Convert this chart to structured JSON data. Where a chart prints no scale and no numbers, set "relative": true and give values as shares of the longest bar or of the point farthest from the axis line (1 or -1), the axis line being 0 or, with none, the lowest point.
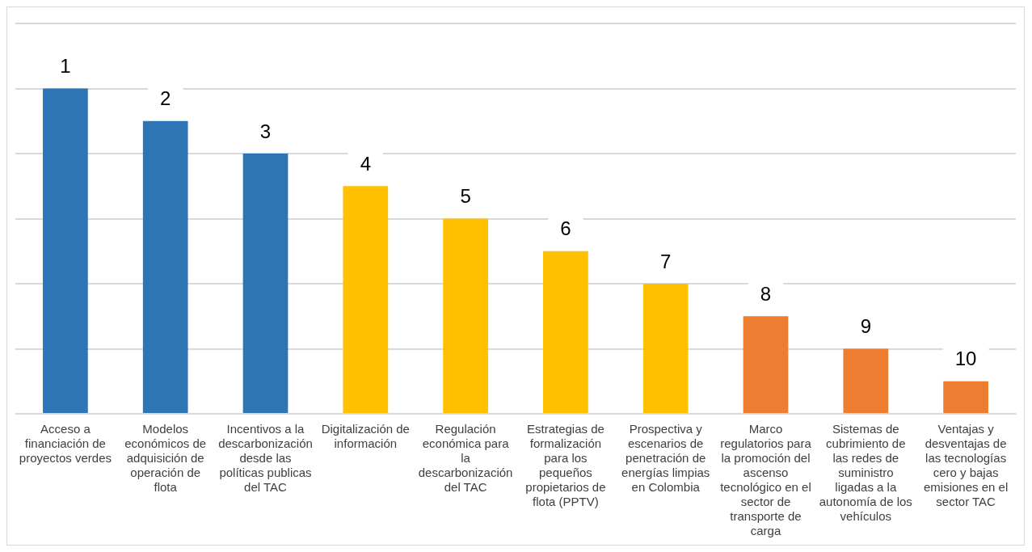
{
  "chart_data": {
    "type": "bar",
    "relative": true,
    "grid": "y",
    "legend": false,
    "categories": [
      "Acceso a financiación de proyectos verdes",
      "Modelos económicos de adquisición de operación de flota",
      "Incentivos a la descarbonización desde las políticas publicas del TAC",
      "Digitalización de información",
      "Regulación económica para la descarbonización del TAC",
      "Estrategias de formalización para los pequeños propietarios de flota (PPTV)",
      "Prospectiva y escenarios de penetración de energías limpias en Colombia",
      "Marco regulatorios para la promoción del ascenso tecnológico en el sector de transporte de carga",
      "Sistemas de cubrimiento de las redes de suministro ligadas a la autonomía de los vehículos",
      "Ventajas y desventajas de las tecnologías cero y bajas emisiones en el sector TAC"
    ],
    "values": [
      1,
      0.9,
      0.8,
      0.7,
      0.6,
      0.5,
      0.4,
      0.3,
      0.2,
      0.1
    ],
    "colors": [
      "#2e75b6",
      "#2e75b6",
      "#2e75b6",
      "#ffc000",
      "#ffc000",
      "#ffc000",
      "#ffc000",
      "#ed7d31",
      "#ed7d31",
      "#ed7d31"
    ],
    "annotations": [
      "1",
      "2",
      "3",
      "4",
      "5",
      "6",
      "7",
      "8",
      "9",
      "10"
    ]
  }
}
